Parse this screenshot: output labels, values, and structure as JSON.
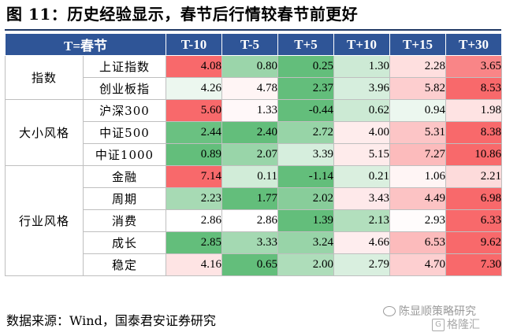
{
  "title": "图 11：历史经验显示，春节后行情较春节前更好",
  "table": {
    "corner_label": "T=春节",
    "columns": [
      "T-10",
      "T-5",
      "T+5",
      "T+10",
      "T+15",
      "T+30"
    ],
    "groups": [
      {
        "name": "指数",
        "rows": [
          {
            "label": "上证指数",
            "values": [
              "4.08",
              "0.80",
              "0.25",
              "1.30",
              "2.28",
              "3.65"
            ]
          },
          {
            "label": "创业板指",
            "values": [
              "4.26",
              "4.78",
              "2.37",
              "3.96",
              "5.82",
              "8.53"
            ]
          }
        ]
      },
      {
        "name": "大小风格",
        "rows": [
          {
            "label": "沪深300",
            "values": [
              "5.60",
              "1.33",
              "-0.44",
              "0.62",
              "0.94",
              "1.98"
            ]
          },
          {
            "label": "中证500",
            "values": [
              "2.44",
              "2.40",
              "2.72",
              "4.00",
              "5.31",
              "8.38"
            ]
          },
          {
            "label": "中证1000",
            "values": [
              "0.89",
              "2.07",
              "3.39",
              "5.15",
              "7.27",
              "10.86"
            ]
          }
        ]
      },
      {
        "name": "行业风格",
        "rows": [
          {
            "label": "金融",
            "values": [
              "7.14",
              "0.11",
              "-1.14",
              "0.21",
              "1.06",
              "2.21"
            ]
          },
          {
            "label": "周期",
            "values": [
              "2.23",
              "1.77",
              "2.02",
              "3.43",
              "4.49",
              "6.98"
            ]
          },
          {
            "label": "消费",
            "values": [
              "2.86",
              "2.86",
              "1.39",
              "2.13",
              "2.93",
              "6.33"
            ]
          },
          {
            "label": "成长",
            "values": [
              "2.85",
              "3.33",
              "3.24",
              "4.66",
              "6.53",
              "9.62"
            ]
          },
          {
            "label": "稳定",
            "values": [
              "4.16",
              "0.65",
              "2.00",
              "2.79",
              "4.70",
              "7.30"
            ]
          }
        ]
      }
    ]
  },
  "source": "数据来源：Wind，国泰君安证券研究",
  "watermark_1": "陈显顺策略研究",
  "watermark_2": "格隆汇",
  "colors": {
    "header_bg": "#2f5597",
    "title_rule": "#1f3864",
    "low_green": "#63be7b",
    "mid_white": "#ffffff",
    "high_red": "#f8696b"
  }
}
